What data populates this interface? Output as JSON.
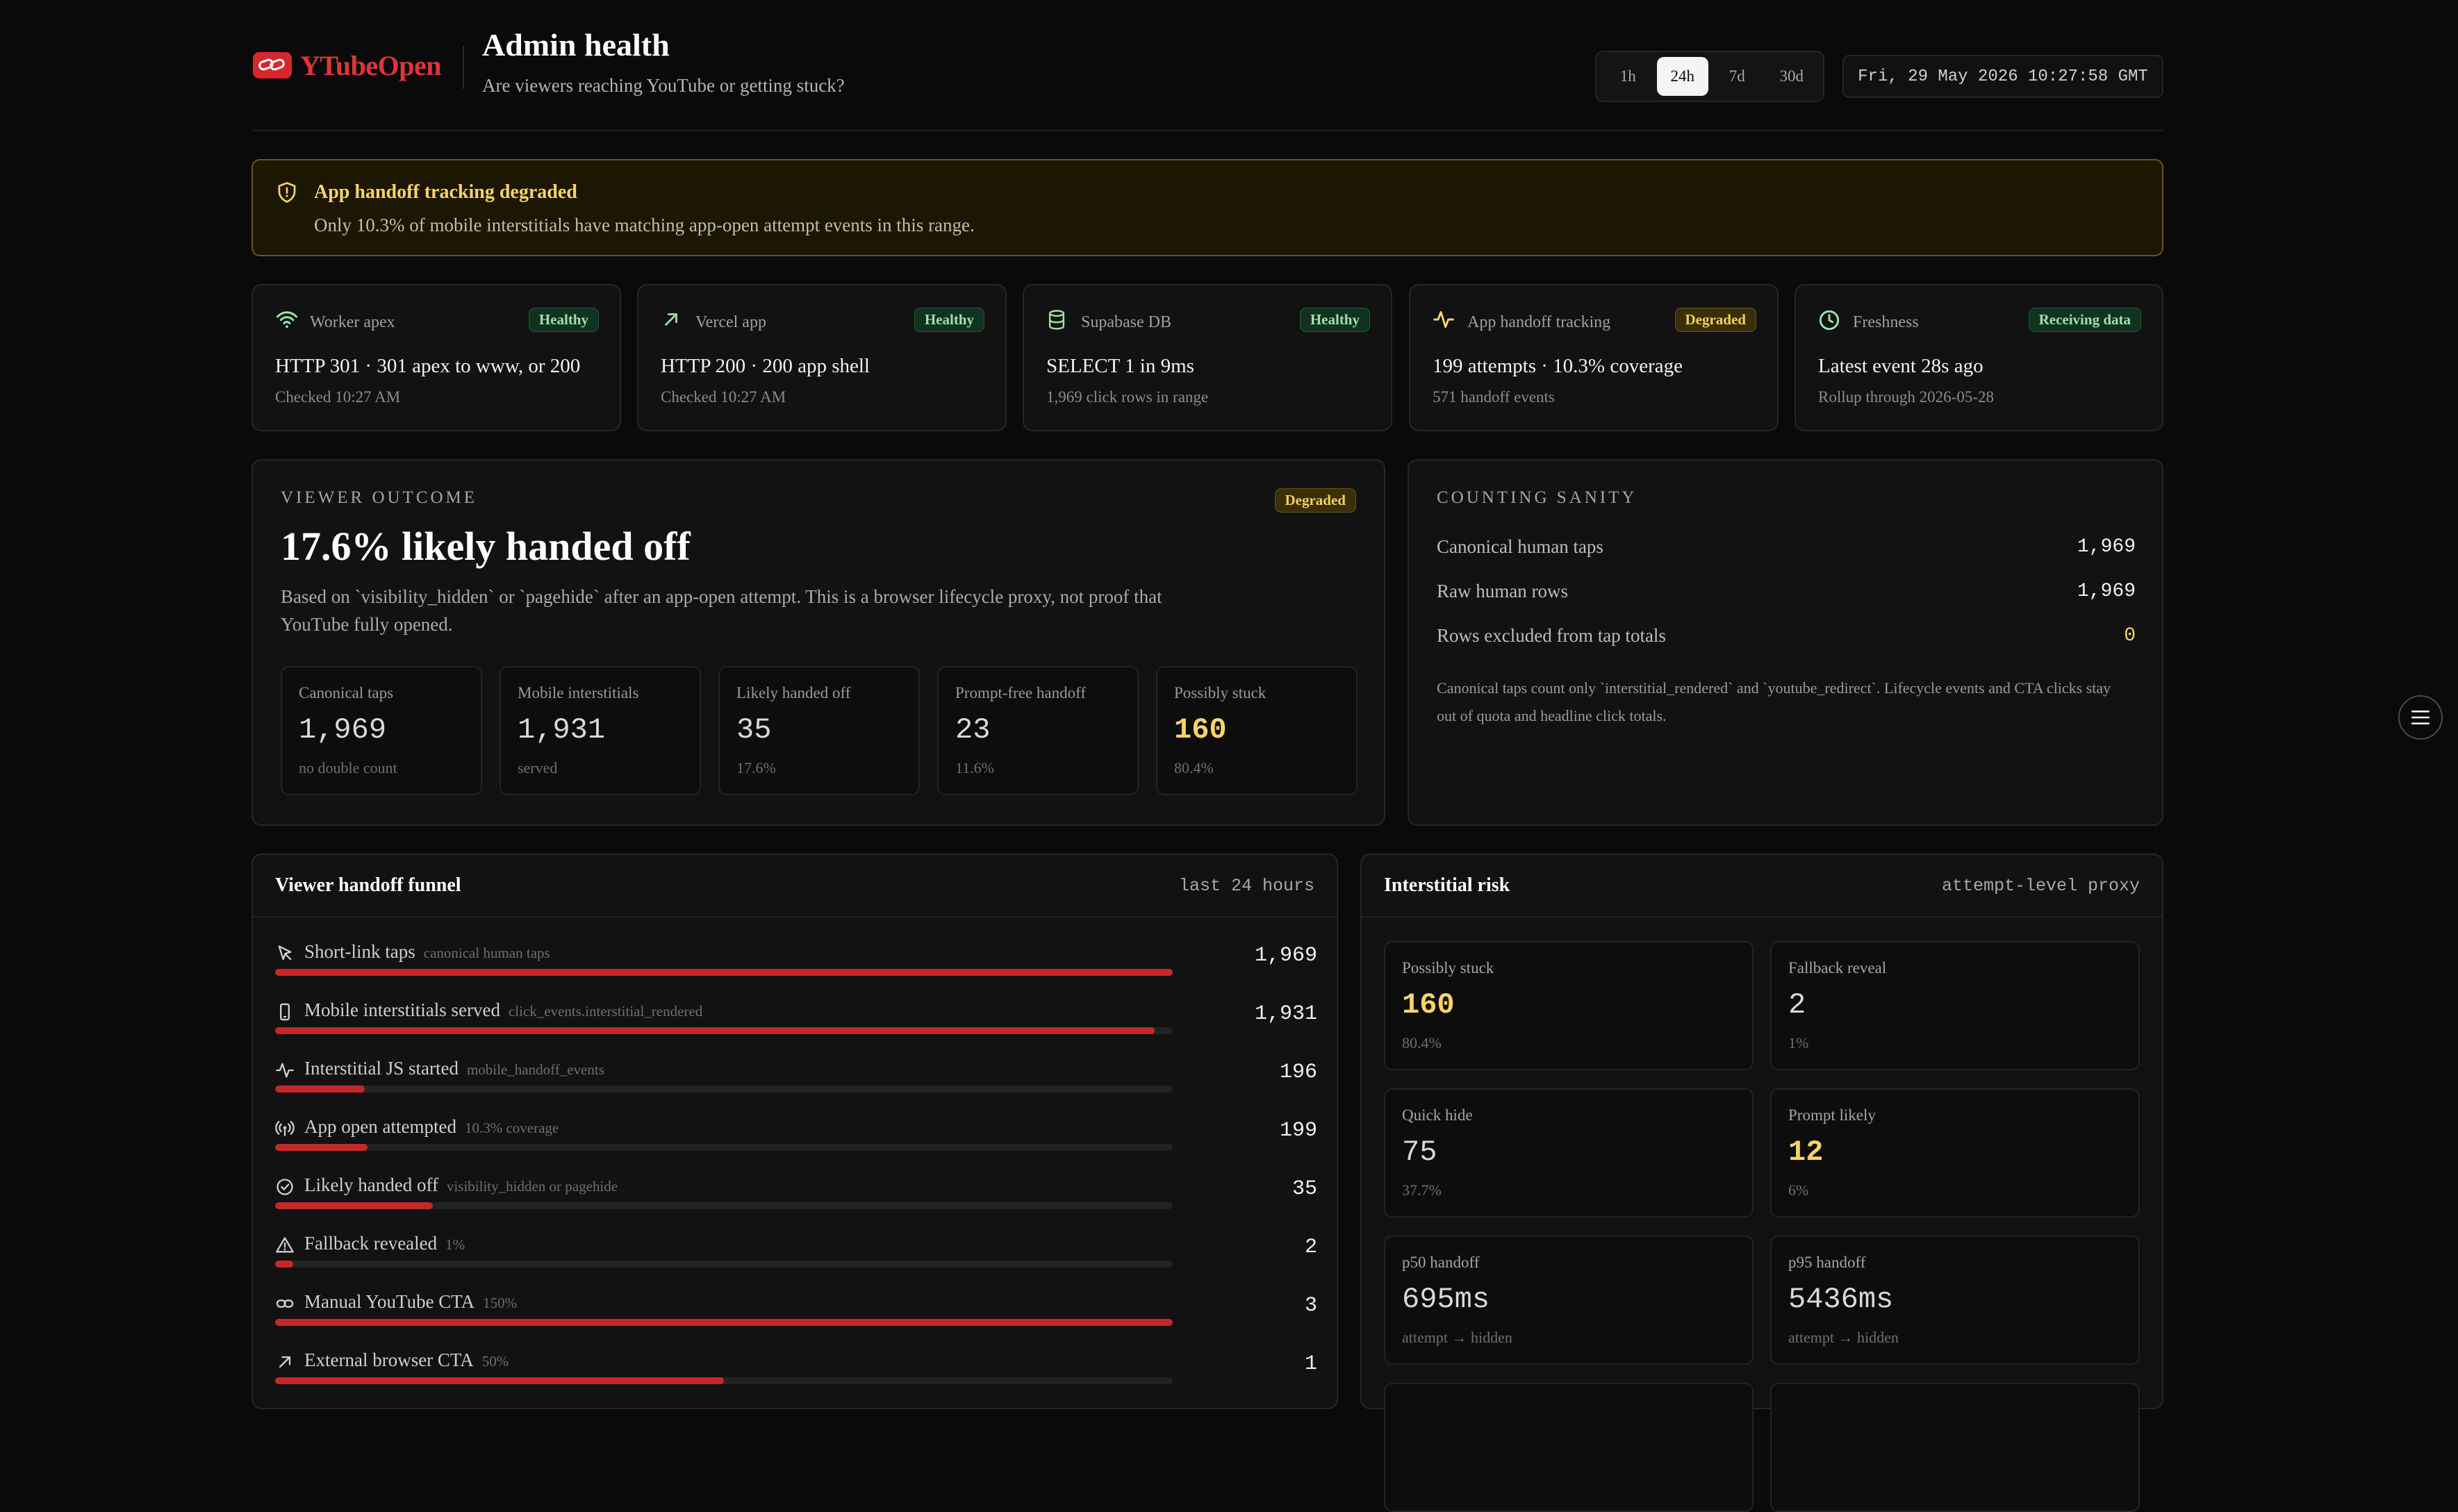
{
  "brand": {
    "name": "YTubeOpen"
  },
  "header": {
    "title": "Admin health",
    "subtitle": "Are viewers reaching YouTube or getting stuck?",
    "ranges": [
      "1h",
      "24h",
      "7d",
      "30d"
    ],
    "active_range": "24h",
    "clock": "Fri, 29 May 2026 10:27:58 GMT"
  },
  "banner": {
    "title": "App handoff tracking degraded",
    "text": "Only 10.3% of mobile interstitials have matching app-open attempt events in this range."
  },
  "status_cards": [
    {
      "icon": "wifi-icon",
      "name": "Worker apex",
      "badge": "Healthy",
      "badge_kind": "ok",
      "value": "HTTP 301 · 301 apex to www, or 200",
      "sub": "Checked 10:27 AM"
    },
    {
      "icon": "arrow-up-right-icon",
      "name": "Vercel app",
      "badge": "Healthy",
      "badge_kind": "ok",
      "value": "HTTP 200 · 200 app shell",
      "sub": "Checked 10:27 AM"
    },
    {
      "icon": "database-icon",
      "name": "Supabase DB",
      "badge": "Healthy",
      "badge_kind": "ok",
      "value": "SELECT 1 in 9ms",
      "sub": "1,969 click rows in range"
    },
    {
      "icon": "activity-icon",
      "name": "App handoff tracking",
      "badge": "Degraded",
      "badge_kind": "warn",
      "value": "199 attempts · 10.3% coverage",
      "sub": "571 handoff events"
    },
    {
      "icon": "clock-icon",
      "name": "Freshness",
      "badge": "Receiving data",
      "badge_kind": "ok",
      "value": "Latest event 28s ago",
      "sub": "Rollup through 2026-05-28"
    }
  ],
  "viewer_outcome": {
    "caption": "VIEWER OUTCOME",
    "badge": "Degraded",
    "headline": "17.6% likely handed off",
    "description": "Based on `visibility_hidden` or `pagehide` after an app-open attempt. This is a browser lifecycle proxy, not proof that YouTube fully opened.",
    "metrics": [
      {
        "label": "Canonical taps",
        "value": "1,969",
        "sub": "no double count"
      },
      {
        "label": "Mobile interstitials",
        "value": "1,931",
        "sub": "served"
      },
      {
        "label": "Likely handed off",
        "value": "35",
        "sub": "17.6%"
      },
      {
        "label": "Prompt-free handoff",
        "value": "23",
        "sub": "11.6%"
      },
      {
        "label": "Possibly stuck",
        "value": "160",
        "sub": "80.4%",
        "highlight": true
      }
    ]
  },
  "counting_sanity": {
    "caption": "COUNTING SANITY",
    "rows": [
      {
        "label": "Canonical human taps",
        "value": "1,969"
      },
      {
        "label": "Raw human rows",
        "value": "1,969"
      },
      {
        "label": "Rows excluded from tap totals",
        "value": "0",
        "highlight": true
      }
    ],
    "note": "Canonical taps count only `interstitial_rendered` and `youtube_redirect`. Lifecycle events and CTA clicks stay out of quota and headline click totals."
  },
  "funnel": {
    "title": "Viewer handoff funnel",
    "range_label": "last 24 hours",
    "rows": [
      {
        "icon": "cursor-icon",
        "label": "Short-link taps",
        "sub": "canonical human taps",
        "value": "1,969",
        "fraction": 1.0
      },
      {
        "icon": "phone-icon",
        "label": "Mobile interstitials served",
        "sub": "click_events.interstitial_rendered",
        "value": "1,931",
        "fraction": 0.98
      },
      {
        "icon": "activity-icon",
        "label": "Interstitial JS started",
        "sub": "mobile_handoff_events",
        "value": "196",
        "fraction": 0.1
      },
      {
        "icon": "broadcast-icon",
        "label": "App open attempted",
        "sub": "10.3% coverage",
        "value": "199",
        "fraction": 0.103
      },
      {
        "icon": "check-circle-icon",
        "label": "Likely handed off",
        "sub": "visibility_hidden or pagehide",
        "value": "35",
        "fraction": 0.176
      },
      {
        "icon": "warning-icon",
        "label": "Fallback revealed",
        "sub": "1%",
        "value": "2",
        "fraction": 0.02
      },
      {
        "icon": "link-icon",
        "label": "Manual YouTube CTA",
        "sub": "150%",
        "value": "3",
        "fraction": 1.0
      },
      {
        "icon": "arrow-up-right-icon",
        "label": "External browser CTA",
        "sub": "50%",
        "value": "1",
        "fraction": 0.5
      }
    ]
  },
  "risk": {
    "title": "Interstitial risk",
    "tag": "attempt-level proxy",
    "cards": [
      {
        "label": "Possibly stuck",
        "value": "160",
        "sub": "80.4%",
        "highlight": true
      },
      {
        "label": "Fallback reveal",
        "value": "2",
        "sub": "1%"
      },
      {
        "label": "Quick hide",
        "value": "75",
        "sub": "37.7%"
      },
      {
        "label": "Prompt likely",
        "value": "12",
        "sub": "6%",
        "highlight": true
      },
      {
        "label": "p50 handoff",
        "value": "695ms",
        "sub": "attempt → hidden"
      },
      {
        "label": "p95 handoff",
        "value": "5436ms",
        "sub": "attempt → hidden"
      }
    ]
  },
  "colors": {
    "accent": "#c62828",
    "warn": "#f7d36a",
    "ok": "#9ae3a7",
    "background": "#0a0a0a"
  }
}
